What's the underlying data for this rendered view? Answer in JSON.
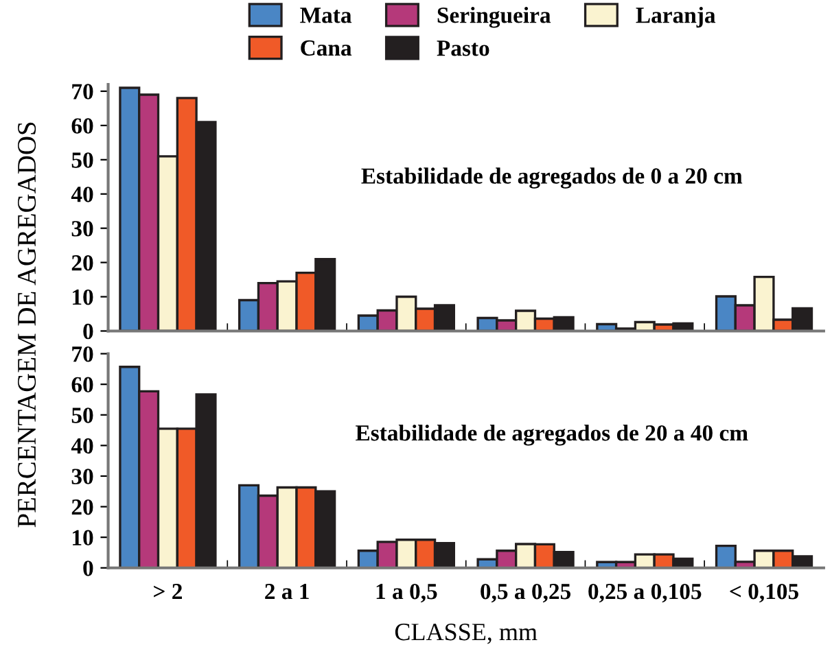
{
  "chart_data": [
    {
      "type": "bar",
      "ylabel": "PERCENTAGEM DE AGREGADOS",
      "annotations": [
        "Estabilidade de agregados de 0 a 20 cm"
      ],
      "categories": [
        null,
        null,
        null,
        null,
        null,
        null
      ],
      "series": [
        {
          "name": "Mata",
          "color": "#4a86c5",
          "values": [
            71,
            9,
            4.5,
            3.8,
            2,
            10.1
          ]
        },
        {
          "name": "Seringueira",
          "color": "#b5397a",
          "values": [
            69,
            14,
            6,
            3.1,
            0.7,
            7.5
          ]
        },
        {
          "name": "Laranja",
          "color": "#faf3d0",
          "values": [
            51,
            14.5,
            10,
            5.9,
            2.6,
            15.8
          ]
        },
        {
          "name": "Cana",
          "color": "#f05a28",
          "values": [
            68,
            17,
            6.5,
            3.6,
            1.9,
            3.3
          ]
        },
        {
          "name": "Pasto",
          "color": "#231f20",
          "values": [
            61,
            21,
            7.5,
            4,
            2.2,
            6.6
          ]
        }
      ],
      "ylim": [
        0,
        72
      ],
      "yticks": [
        0,
        10,
        20,
        30,
        40,
        50,
        60,
        70
      ],
      "legend": "top",
      "grid": false
    },
    {
      "type": "bar",
      "xlabel": "CLASSE, mm",
      "annotations": [
        "Estabilidade de agregados de 20 a 40 cm"
      ],
      "categories": [
        "> 2",
        "2 a 1",
        "1 a 0,5",
        "0,5 a 0,25",
        "0,25 a 0,105",
        "< 0,105"
      ],
      "series": [
        {
          "color": "#4a86c5",
          "values": [
            65.7,
            27,
            5.6,
            2.8,
            1.9,
            7.2
          ]
        },
        {
          "color": "#b5397a",
          "values": [
            57.7,
            23.6,
            8.5,
            5.6,
            1.9,
            2
          ]
        },
        {
          "color": "#faf3d0",
          "values": [
            45.5,
            26.3,
            9.2,
            7.8,
            4.4,
            5.6
          ]
        },
        {
          "color": "#f05a28",
          "values": [
            45.5,
            26.3,
            9.2,
            7.7,
            4.4,
            5.6
          ]
        },
        {
          "color": "#231f20",
          "values": [
            56.7,
            25,
            8.1,
            5.2,
            3,
            3.8
          ]
        }
      ],
      "ylim": [
        0,
        70
      ],
      "yticks": [
        0,
        10,
        20,
        30,
        40,
        50,
        60,
        70
      ],
      "grid": false
    }
  ]
}
